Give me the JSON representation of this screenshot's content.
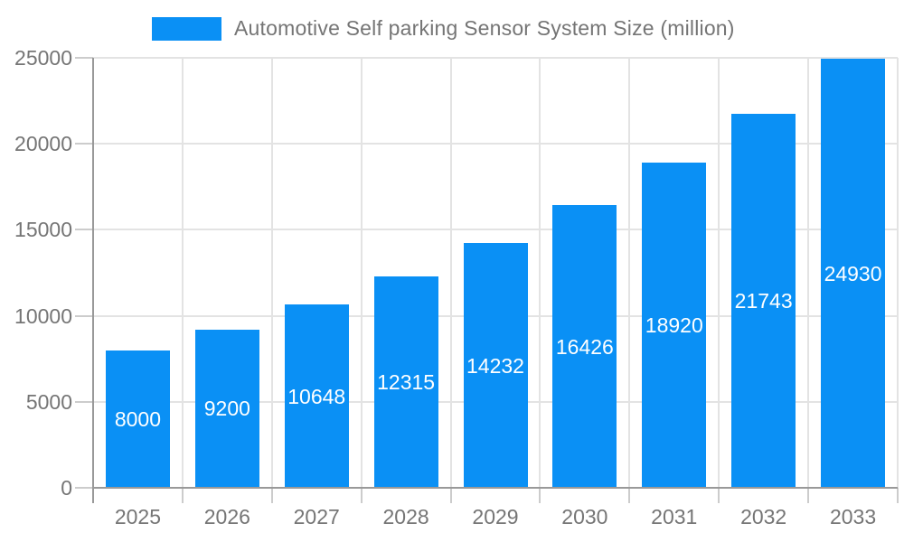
{
  "chart_data": {
    "type": "bar",
    "title": "Automotive Self parking Sensor System Size (million)",
    "legend_position": "top",
    "categories": [
      "2025",
      "2026",
      "2027",
      "2028",
      "2029",
      "2030",
      "2031",
      "2032",
      "2033"
    ],
    "values": [
      8000,
      9200,
      10648,
      12315,
      14232,
      16426,
      18920,
      21743,
      24930
    ],
    "xlabel": "",
    "ylabel": "",
    "ylim": [
      0,
      25000
    ],
    "yticks": [
      0,
      5000,
      10000,
      15000,
      20000,
      25000
    ],
    "grid": true,
    "value_labels_inside_bars": true,
    "colors": {
      "bar": "#0a90f5",
      "value_label": "#ffffff",
      "axis": "#999999",
      "grid": "#e3e3e3",
      "tick": "#cccccc",
      "tick_text": "#757575",
      "legend_text": "#757575",
      "background": "#ffffff"
    }
  }
}
